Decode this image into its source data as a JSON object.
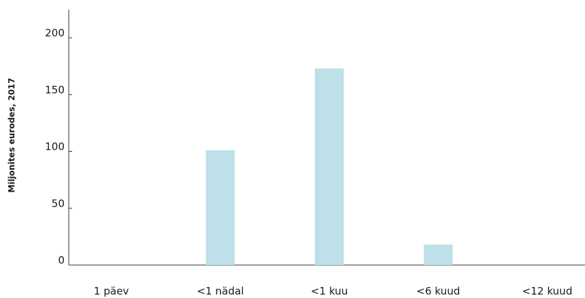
{
  "chart_data": {
    "type": "bar",
    "title": "",
    "xlabel": "",
    "ylabel": "Miljonites eurodes, 2017",
    "categories": [
      "1 päev",
      "<1 nädal",
      "<1 kuu",
      "<6 kuud",
      "<12 kuud"
    ],
    "values": [
      0,
      101,
      173,
      18,
      0
    ],
    "ylim": [
      0,
      225
    ],
    "yticks": [
      0,
      50,
      100,
      150,
      200
    ],
    "grid": false,
    "legend": "none",
    "bar_color": "#bde0e9",
    "axis_color": "#333333"
  }
}
